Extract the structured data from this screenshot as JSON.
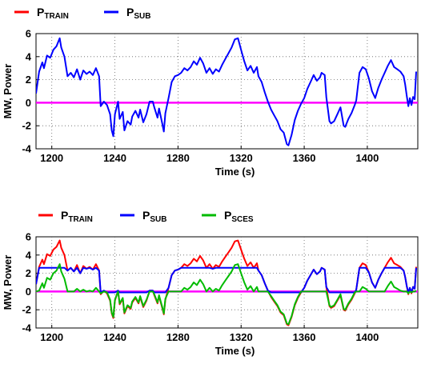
{
  "chart_data": [
    {
      "type": "line",
      "title": "",
      "xlabel": "Time (s)",
      "ylabel": "MW, Power",
      "xlim": [
        1190,
        1432
      ],
      "ylim": [
        -4,
        6
      ],
      "x_ticks": [
        1200,
        1240,
        1280,
        1320,
        1360,
        1400
      ],
      "y_ticks": [
        -4,
        -2,
        0,
        2,
        4,
        6
      ],
      "grid": "dotted",
      "legend": {
        "placement": "top-left",
        "entries": [
          {
            "main": "P",
            "sub": "TRAIN",
            "color": "#ff0000"
          },
          {
            "main": "P",
            "sub": "SUB",
            "color": "#0000ff"
          }
        ]
      },
      "series": [
        {
          "name": "PTRAIN",
          "color": "#ff0000",
          "points": []
        },
        {
          "name": "PSUB",
          "color": "#0000ff",
          "points": [
            [
              1190,
              0.8
            ],
            [
              1192,
              2.7
            ],
            [
              1194,
              3.5
            ],
            [
              1195,
              3.0
            ],
            [
              1197,
              4.1
            ],
            [
              1199,
              3.9
            ],
            [
              1201,
              4.6
            ],
            [
              1203,
              4.9
            ],
            [
              1205,
              5.6
            ],
            [
              1206,
              4.8
            ],
            [
              1208,
              4.0
            ],
            [
              1210,
              2.3
            ],
            [
              1212,
              2.6
            ],
            [
              1214,
              2.2
            ],
            [
              1216,
              2.9
            ],
            [
              1218,
              2.0
            ],
            [
              1220,
              2.8
            ],
            [
              1222,
              2.5
            ],
            [
              1224,
              2.7
            ],
            [
              1226,
              2.4
            ],
            [
              1228,
              3.0
            ],
            [
              1230,
              2.3
            ],
            [
              1231,
              -0.3
            ],
            [
              1233,
              0.1
            ],
            [
              1235,
              -0.2
            ],
            [
              1237,
              -1.0
            ],
            [
              1238,
              -2.4
            ],
            [
              1239,
              -2.9
            ],
            [
              1240,
              -1.0
            ],
            [
              1242,
              0.1
            ],
            [
              1243,
              -1.4
            ],
            [
              1245,
              -0.8
            ],
            [
              1246,
              -2.4
            ],
            [
              1248,
              -1.6
            ],
            [
              1250,
              -1.9
            ],
            [
              1251,
              -1.2
            ],
            [
              1253,
              -0.7
            ],
            [
              1255,
              -1.3
            ],
            [
              1256,
              -0.6
            ],
            [
              1258,
              -1.7
            ],
            [
              1260,
              -1.0
            ],
            [
              1262,
              0.1
            ],
            [
              1264,
              0.1
            ],
            [
              1265,
              -0.4
            ],
            [
              1267,
              -1.3
            ],
            [
              1268,
              -0.5
            ],
            [
              1270,
              -1.8
            ],
            [
              1271,
              -2.5
            ],
            [
              1272,
              -0.9
            ],
            [
              1274,
              0.4
            ],
            [
              1276,
              1.8
            ],
            [
              1278,
              2.3
            ],
            [
              1280,
              2.4
            ],
            [
              1282,
              2.6
            ],
            [
              1284,
              3.0
            ],
            [
              1286,
              2.8
            ],
            [
              1288,
              3.1
            ],
            [
              1290,
              3.6
            ],
            [
              1292,
              3.3
            ],
            [
              1294,
              3.9
            ],
            [
              1296,
              3.4
            ],
            [
              1298,
              2.6
            ],
            [
              1300,
              3.0
            ],
            [
              1302,
              2.5
            ],
            [
              1304,
              2.9
            ],
            [
              1306,
              2.7
            ],
            [
              1308,
              3.3
            ],
            [
              1310,
              3.8
            ],
            [
              1312,
              4.3
            ],
            [
              1314,
              4.8
            ],
            [
              1316,
              5.5
            ],
            [
              1318,
              5.6
            ],
            [
              1320,
              4.6
            ],
            [
              1322,
              3.6
            ],
            [
              1324,
              2.8
            ],
            [
              1326,
              3.2
            ],
            [
              1328,
              2.6
            ],
            [
              1330,
              3.1
            ],
            [
              1331,
              2.3
            ],
            [
              1333,
              1.8
            ],
            [
              1335,
              0.9
            ],
            [
              1337,
              0.1
            ],
            [
              1339,
              -0.6
            ],
            [
              1341,
              -1.1
            ],
            [
              1343,
              -1.6
            ],
            [
              1345,
              -2.3
            ],
            [
              1347,
              -2.6
            ],
            [
              1349,
              -3.6
            ],
            [
              1350,
              -3.7
            ],
            [
              1352,
              -2.8
            ],
            [
              1354,
              -1.5
            ],
            [
              1356,
              -0.7
            ],
            [
              1358,
              -0.1
            ],
            [
              1360,
              0.4
            ],
            [
              1362,
              1.2
            ],
            [
              1364,
              1.8
            ],
            [
              1366,
              2.4
            ],
            [
              1368,
              1.9
            ],
            [
              1370,
              2.2
            ],
            [
              1371,
              2.6
            ],
            [
              1373,
              2.4
            ],
            [
              1374,
              0.5
            ],
            [
              1376,
              -1.6
            ],
            [
              1377,
              -1.8
            ],
            [
              1379,
              -1.6
            ],
            [
              1381,
              -1.0
            ],
            [
              1383,
              -0.4
            ],
            [
              1385,
              -2.0
            ],
            [
              1386,
              -2.1
            ],
            [
              1388,
              -1.4
            ],
            [
              1390,
              -0.9
            ],
            [
              1392,
              -0.2
            ],
            [
              1393,
              0.2
            ],
            [
              1395,
              2.6
            ],
            [
              1397,
              3.1
            ],
            [
              1399,
              2.9
            ],
            [
              1401,
              2.1
            ],
            [
              1403,
              1.0
            ],
            [
              1405,
              0.4
            ],
            [
              1407,
              1.3
            ],
            [
              1409,
              2.0
            ],
            [
              1411,
              2.6
            ],
            [
              1413,
              3.2
            ],
            [
              1415,
              3.7
            ],
            [
              1417,
              3.1
            ],
            [
              1419,
              2.9
            ],
            [
              1421,
              2.7
            ],
            [
              1423,
              2.3
            ],
            [
              1424,
              1.6
            ],
            [
              1425,
              0.6
            ],
            [
              1426,
              -0.3
            ],
            [
              1427,
              0.4
            ],
            [
              1428,
              -0.2
            ],
            [
              1429,
              0.5
            ],
            [
              1430,
              0.3
            ],
            [
              1431,
              2.7
            ]
          ]
        }
      ],
      "reference_line": {
        "y": 0,
        "color": "#ff00ff"
      }
    },
    {
      "type": "line",
      "title": "",
      "xlabel": "Time (s)",
      "ylabel": "MW, Power",
      "xlim": [
        1190,
        1432
      ],
      "ylim": [
        -4,
        6
      ],
      "x_ticks": [
        1200,
        1240,
        1280,
        1320,
        1360,
        1400
      ],
      "y_ticks": [
        -4,
        -2,
        0,
        2,
        4,
        6
      ],
      "grid": "dotted",
      "legend": {
        "placement": "top",
        "entries": [
          {
            "main": "P",
            "sub": "TRAIN",
            "color": "#ff0000"
          },
          {
            "main": "P",
            "sub": "SUB",
            "color": "#0000ff"
          },
          {
            "main": "P",
            "sub": "SCES",
            "color": "#00bb00"
          }
        ]
      },
      "series": [
        {
          "name": "PTRAIN",
          "color": "#ff0000",
          "points": "same as top PSUB"
        },
        {
          "name": "PSUB",
          "color": "#0000ff",
          "clip": [
            -0.1,
            2.6
          ]
        },
        {
          "name": "PSCES",
          "color": "#00bb00",
          "formula": "PTRAIN - PSUB"
        }
      ],
      "reference_line": {
        "y": 0,
        "color": "#ff00ff"
      }
    }
  ]
}
